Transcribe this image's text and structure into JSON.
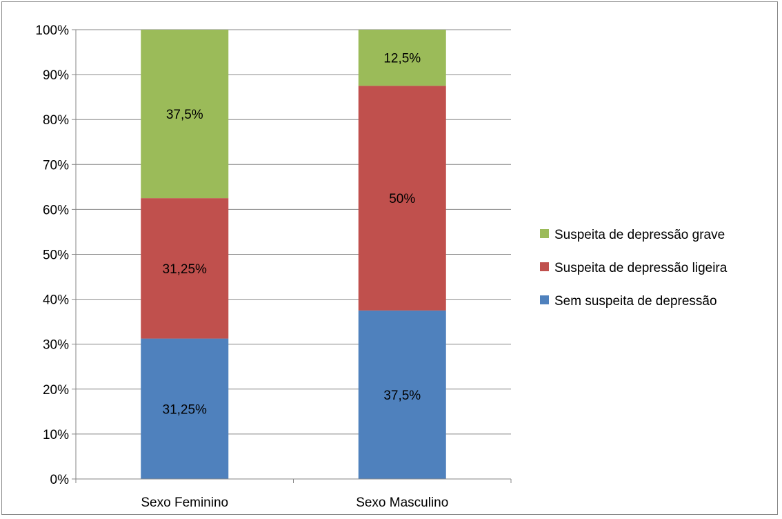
{
  "chart_data": {
    "type": "bar",
    "stacked": true,
    "percent_stacked": true,
    "categories": [
      "Sexo Feminino",
      "Sexo Masculino"
    ],
    "series": [
      {
        "name": "Sem suspeita de depressão",
        "values": [
          31.25,
          37.5
        ],
        "labels": [
          "31,25%",
          "37,5%"
        ],
        "color": "#4f81bd"
      },
      {
        "name": "Suspeita de depressão ligeira",
        "values": [
          31.25,
          50
        ],
        "labels": [
          "31,25%",
          "50%"
        ],
        "color": "#c0504d"
      },
      {
        "name": "Suspeita de depressão grave",
        "values": [
          37.5,
          12.5
        ],
        "labels": [
          "37,5%",
          "12,5%"
        ],
        "color": "#9bbb59"
      }
    ],
    "yticks": [
      "0%",
      "10%",
      "20%",
      "30%",
      "40%",
      "50%",
      "60%",
      "70%",
      "80%",
      "90%",
      "100%"
    ],
    "ylim": [
      0,
      100
    ],
    "grid": true,
    "legend_position": "right",
    "legend_order": [
      "Suspeita de depressão grave",
      "Suspeita de depressão ligeira",
      "Sem suspeita de depressão"
    ]
  }
}
